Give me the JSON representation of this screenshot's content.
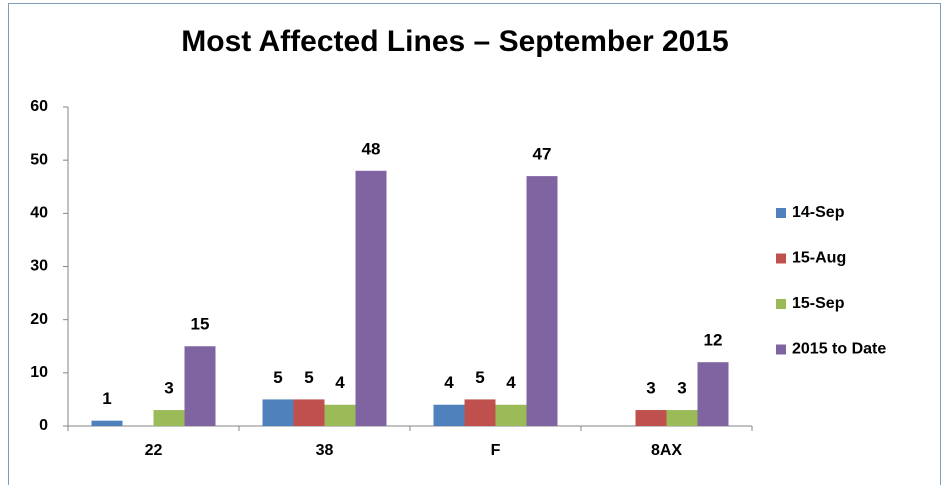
{
  "chart_data": {
    "type": "bar",
    "title": "Most Affected Lines – September 2015",
    "categories": [
      "22",
      "38",
      "F",
      "8AX"
    ],
    "series": [
      {
        "name": "14-Sep",
        "color": "#4f81bd",
        "values": [
          1,
          5,
          4,
          null
        ]
      },
      {
        "name": "15-Aug",
        "color": "#c0504d",
        "values": [
          null,
          5,
          5,
          3
        ]
      },
      {
        "name": "15-Sep",
        "color": "#9bbb59",
        "values": [
          3,
          4,
          4,
          3
        ]
      },
      {
        "name": "2015 to Date",
        "color": "#8064a2",
        "values": [
          15,
          48,
          47,
          12
        ]
      }
    ],
    "ylim": [
      0,
      60
    ],
    "yticks": [
      0,
      10,
      20,
      30,
      40,
      50,
      60
    ],
    "grid": false,
    "legend": "right"
  }
}
